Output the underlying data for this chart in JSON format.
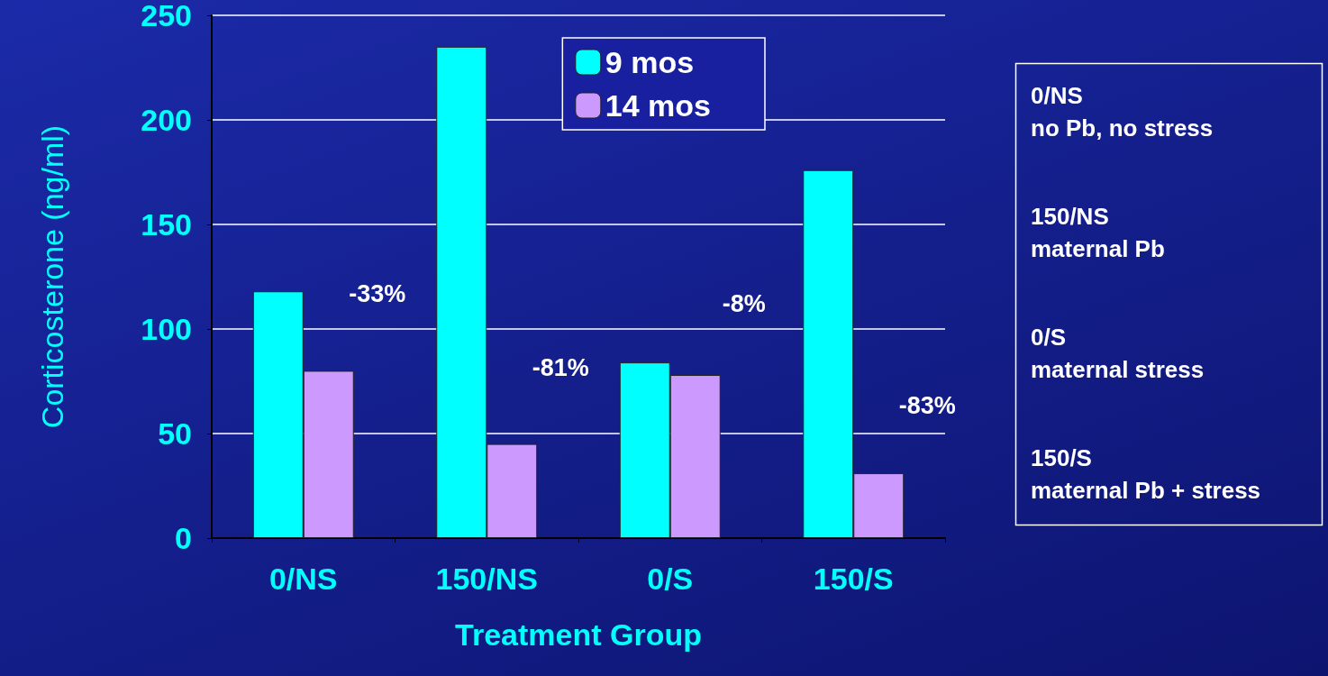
{
  "chart_data": {
    "type": "bar",
    "xlabel": "Treatment Group",
    "ylabel": "Corticosterone (ng/ml)",
    "categories": [
      "0/NS",
      "150/NS",
      "0/S",
      "150/S"
    ],
    "series": [
      {
        "name": "9 mos",
        "color": "#00ffff",
        "values": [
          118,
          235,
          84,
          176
        ]
      },
      {
        "name": "14 mos",
        "color": "#cc99ff",
        "values": [
          80,
          45,
          78,
          31
        ]
      }
    ],
    "ylim": [
      0,
      250
    ],
    "yticks": [
      0,
      50,
      100,
      150,
      200,
      250
    ],
    "grid": "y",
    "legend": "top right",
    "annotations": [
      "-33%",
      "-81%",
      "-8%",
      "-83%",
      "0/NS\nno Pb, no stress",
      "150/NS\nmaternal Pb",
      "0/S\nmaternal stress",
      "150/S\nmaternal Pb + stress"
    ]
  }
}
